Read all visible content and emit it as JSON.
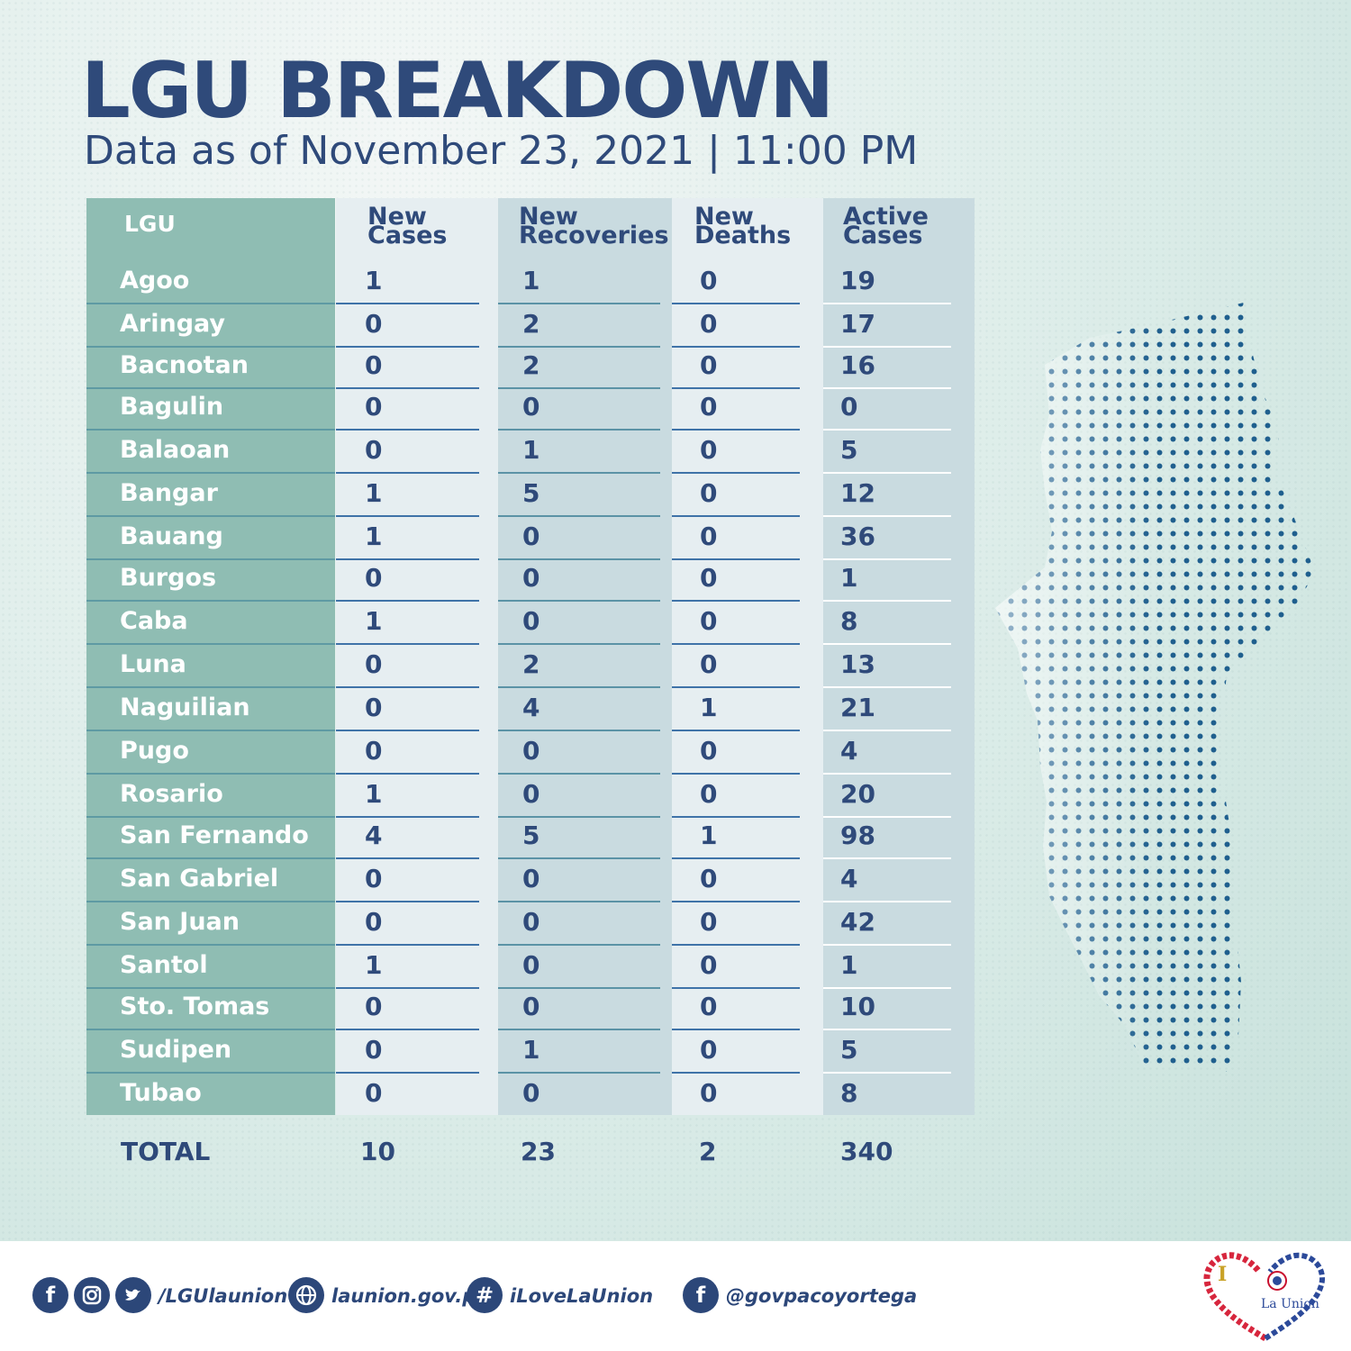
{
  "header": {
    "title": "LGU BREAKDOWN",
    "subtitle": "Data as of November 23, 2021 | 11:00 PM"
  },
  "table": {
    "headers": {
      "lgu": "LGU",
      "new_cases": [
        "New",
        "Cases"
      ],
      "new_recoveries": [
        "New",
        "Recoveries"
      ],
      "new_deaths": [
        "New",
        "Deaths"
      ],
      "active_cases": [
        "Active",
        "Cases"
      ]
    },
    "rows": [
      {
        "lgu": "Agoo",
        "new": "1",
        "rec": "1",
        "dea": "0",
        "act": "19"
      },
      {
        "lgu": "Aringay",
        "new": "0",
        "rec": "2",
        "dea": "0",
        "act": "17"
      },
      {
        "lgu": "Bacnotan",
        "new": "0",
        "rec": "2",
        "dea": "0",
        "act": "16"
      },
      {
        "lgu": "Bagulin",
        "new": "0",
        "rec": "0",
        "dea": "0",
        "act": "0"
      },
      {
        "lgu": "Balaoan",
        "new": "0",
        "rec": "1",
        "dea": "0",
        "act": "5"
      },
      {
        "lgu": "Bangar",
        "new": "1",
        "rec": "5",
        "dea": "0",
        "act": "12"
      },
      {
        "lgu": "Bauang",
        "new": "1",
        "rec": "0",
        "dea": "0",
        "act": "36"
      },
      {
        "lgu": "Burgos",
        "new": "0",
        "rec": "0",
        "dea": "0",
        "act": "1"
      },
      {
        "lgu": "Caba",
        "new": "1",
        "rec": "0",
        "dea": "0",
        "act": "8"
      },
      {
        "lgu": "Luna",
        "new": "0",
        "rec": "2",
        "dea": "0",
        "act": "13"
      },
      {
        "lgu": "Naguilian",
        "new": "0",
        "rec": "4",
        "dea": "1",
        "act": "21"
      },
      {
        "lgu": "Pugo",
        "new": "0",
        "rec": "0",
        "dea": "0",
        "act": "4"
      },
      {
        "lgu": "Rosario",
        "new": "1",
        "rec": "0",
        "dea": "0",
        "act": "20"
      },
      {
        "lgu": "San Fernando",
        "new": "4",
        "rec": "5",
        "dea": "1",
        "act": "98"
      },
      {
        "lgu": "San Gabriel",
        "new": "0",
        "rec": "0",
        "dea": "0",
        "act": "4"
      },
      {
        "lgu": "San Juan",
        "new": "0",
        "rec": "0",
        "dea": "0",
        "act": "42"
      },
      {
        "lgu": "Santol",
        "new": "1",
        "rec": "0",
        "dea": "0",
        "act": "1"
      },
      {
        "lgu": "Sto. Tomas",
        "new": "0",
        "rec": "0",
        "dea": "0",
        "act": "10"
      },
      {
        "lgu": "Sudipen",
        "new": "0",
        "rec": "1",
        "dea": "0",
        "act": "5"
      },
      {
        "lgu": "Tubao",
        "new": "0",
        "rec": "0",
        "dea": "0",
        "act": "8"
      }
    ],
    "total": {
      "label": "TOTAL",
      "new": "10",
      "rec": "23",
      "dea": "2",
      "act": "340"
    }
  },
  "footer": {
    "social_handle": "/LGUlaunion",
    "website": "launion.gov.ph",
    "hashtag": "iLoveLaUnion",
    "governor_handle": "@govpacoyortega",
    "icons": [
      "facebook-icon",
      "instagram-icon",
      "twitter-icon",
      "globe-icon",
      "hashtag-icon",
      "facebook-icon"
    ],
    "logo_text": [
      "I",
      "La Union"
    ]
  },
  "colors": {
    "navy": "#2f4a7a",
    "teal_column": "#8fbdb3",
    "light_column": "#e6eef1",
    "blue_column": "#c9dbe0",
    "dots": "#1f5f8e"
  }
}
